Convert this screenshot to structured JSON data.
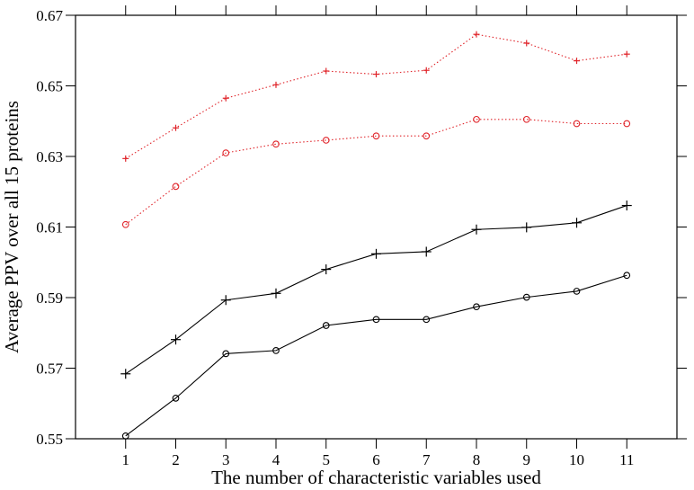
{
  "chart_data": {
    "type": "line",
    "xlabel": "The number of characteristic variables used",
    "ylabel": "Average PPV over all 15 proteins",
    "x": [
      1,
      2,
      3,
      4,
      5,
      6,
      7,
      8,
      9,
      10,
      11
    ],
    "xlim": [
      0,
      12
    ],
    "ylim": [
      0.55,
      0.67
    ],
    "x_ticks": [
      "1",
      "2",
      "3",
      "4",
      "5",
      "6",
      "7",
      "8",
      "9",
      "10",
      "11"
    ],
    "y_ticks": [
      "0.55",
      "0.57",
      "0.59",
      "0.61",
      "0.63",
      "0.65",
      "0.67"
    ],
    "grid": false,
    "series": [
      {
        "color": "#e0242a",
        "line": "dotted",
        "marker": "plus",
        "values": [
          0.6294,
          0.6381,
          0.6465,
          0.6503,
          0.6542,
          0.6533,
          0.6544,
          0.6646,
          0.6621,
          0.6571,
          0.659
        ]
      },
      {
        "color": "#e0242a",
        "line": "dotted",
        "marker": "circle",
        "values": [
          0.6107,
          0.6215,
          0.631,
          0.6335,
          0.6346,
          0.6358,
          0.6358,
          0.6405,
          0.6405,
          0.6393,
          0.6393
        ]
      },
      {
        "color": "#000000",
        "line": "solid",
        "marker": "plus",
        "values": [
          0.5684,
          0.5781,
          0.5893,
          0.5912,
          0.598,
          0.6024,
          0.603,
          0.6093,
          0.6099,
          0.6112,
          0.6161
        ]
      },
      {
        "color": "#000000",
        "line": "solid",
        "marker": "circle",
        "values": [
          0.5508,
          0.5615,
          0.5741,
          0.575,
          0.5821,
          0.5838,
          0.5838,
          0.5874,
          0.5901,
          0.5918,
          0.5963
        ]
      }
    ]
  }
}
